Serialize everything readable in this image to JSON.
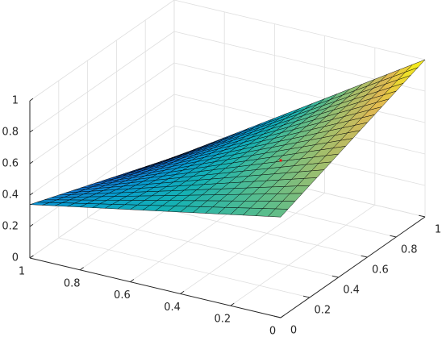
{
  "chart_data": {
    "type": "surface",
    "title": "",
    "xlabel": "",
    "ylabel": "",
    "zlabel": "",
    "x_range": [
      0,
      1
    ],
    "y_range": [
      0,
      1
    ],
    "z_range": [
      0,
      1
    ],
    "x_ticks": [
      "0",
      "0.2",
      "0.4",
      "0.6",
      "0.8",
      "1"
    ],
    "y_ticks": [
      "0",
      "0.2",
      "0.4",
      "0.6",
      "0.8",
      "1"
    ],
    "z_ticks": [
      "0",
      "0.2",
      "0.4",
      "0.6",
      "0.8",
      "1"
    ],
    "grid": true,
    "colormap": "parula",
    "mesh_divisions": 20,
    "surface_corner_values": [
      {
        "x": 0,
        "y": 0,
        "z": 0.64
      },
      {
        "x": 1,
        "y": 0,
        "z": 0.34
      },
      {
        "x": 0,
        "y": 1,
        "z": 1.0
      },
      {
        "x": 1,
        "y": 1,
        "z": 0.0
      }
    ],
    "marker": {
      "x": 0,
      "y": 0,
      "z": 1,
      "color": "#e8130f"
    }
  }
}
